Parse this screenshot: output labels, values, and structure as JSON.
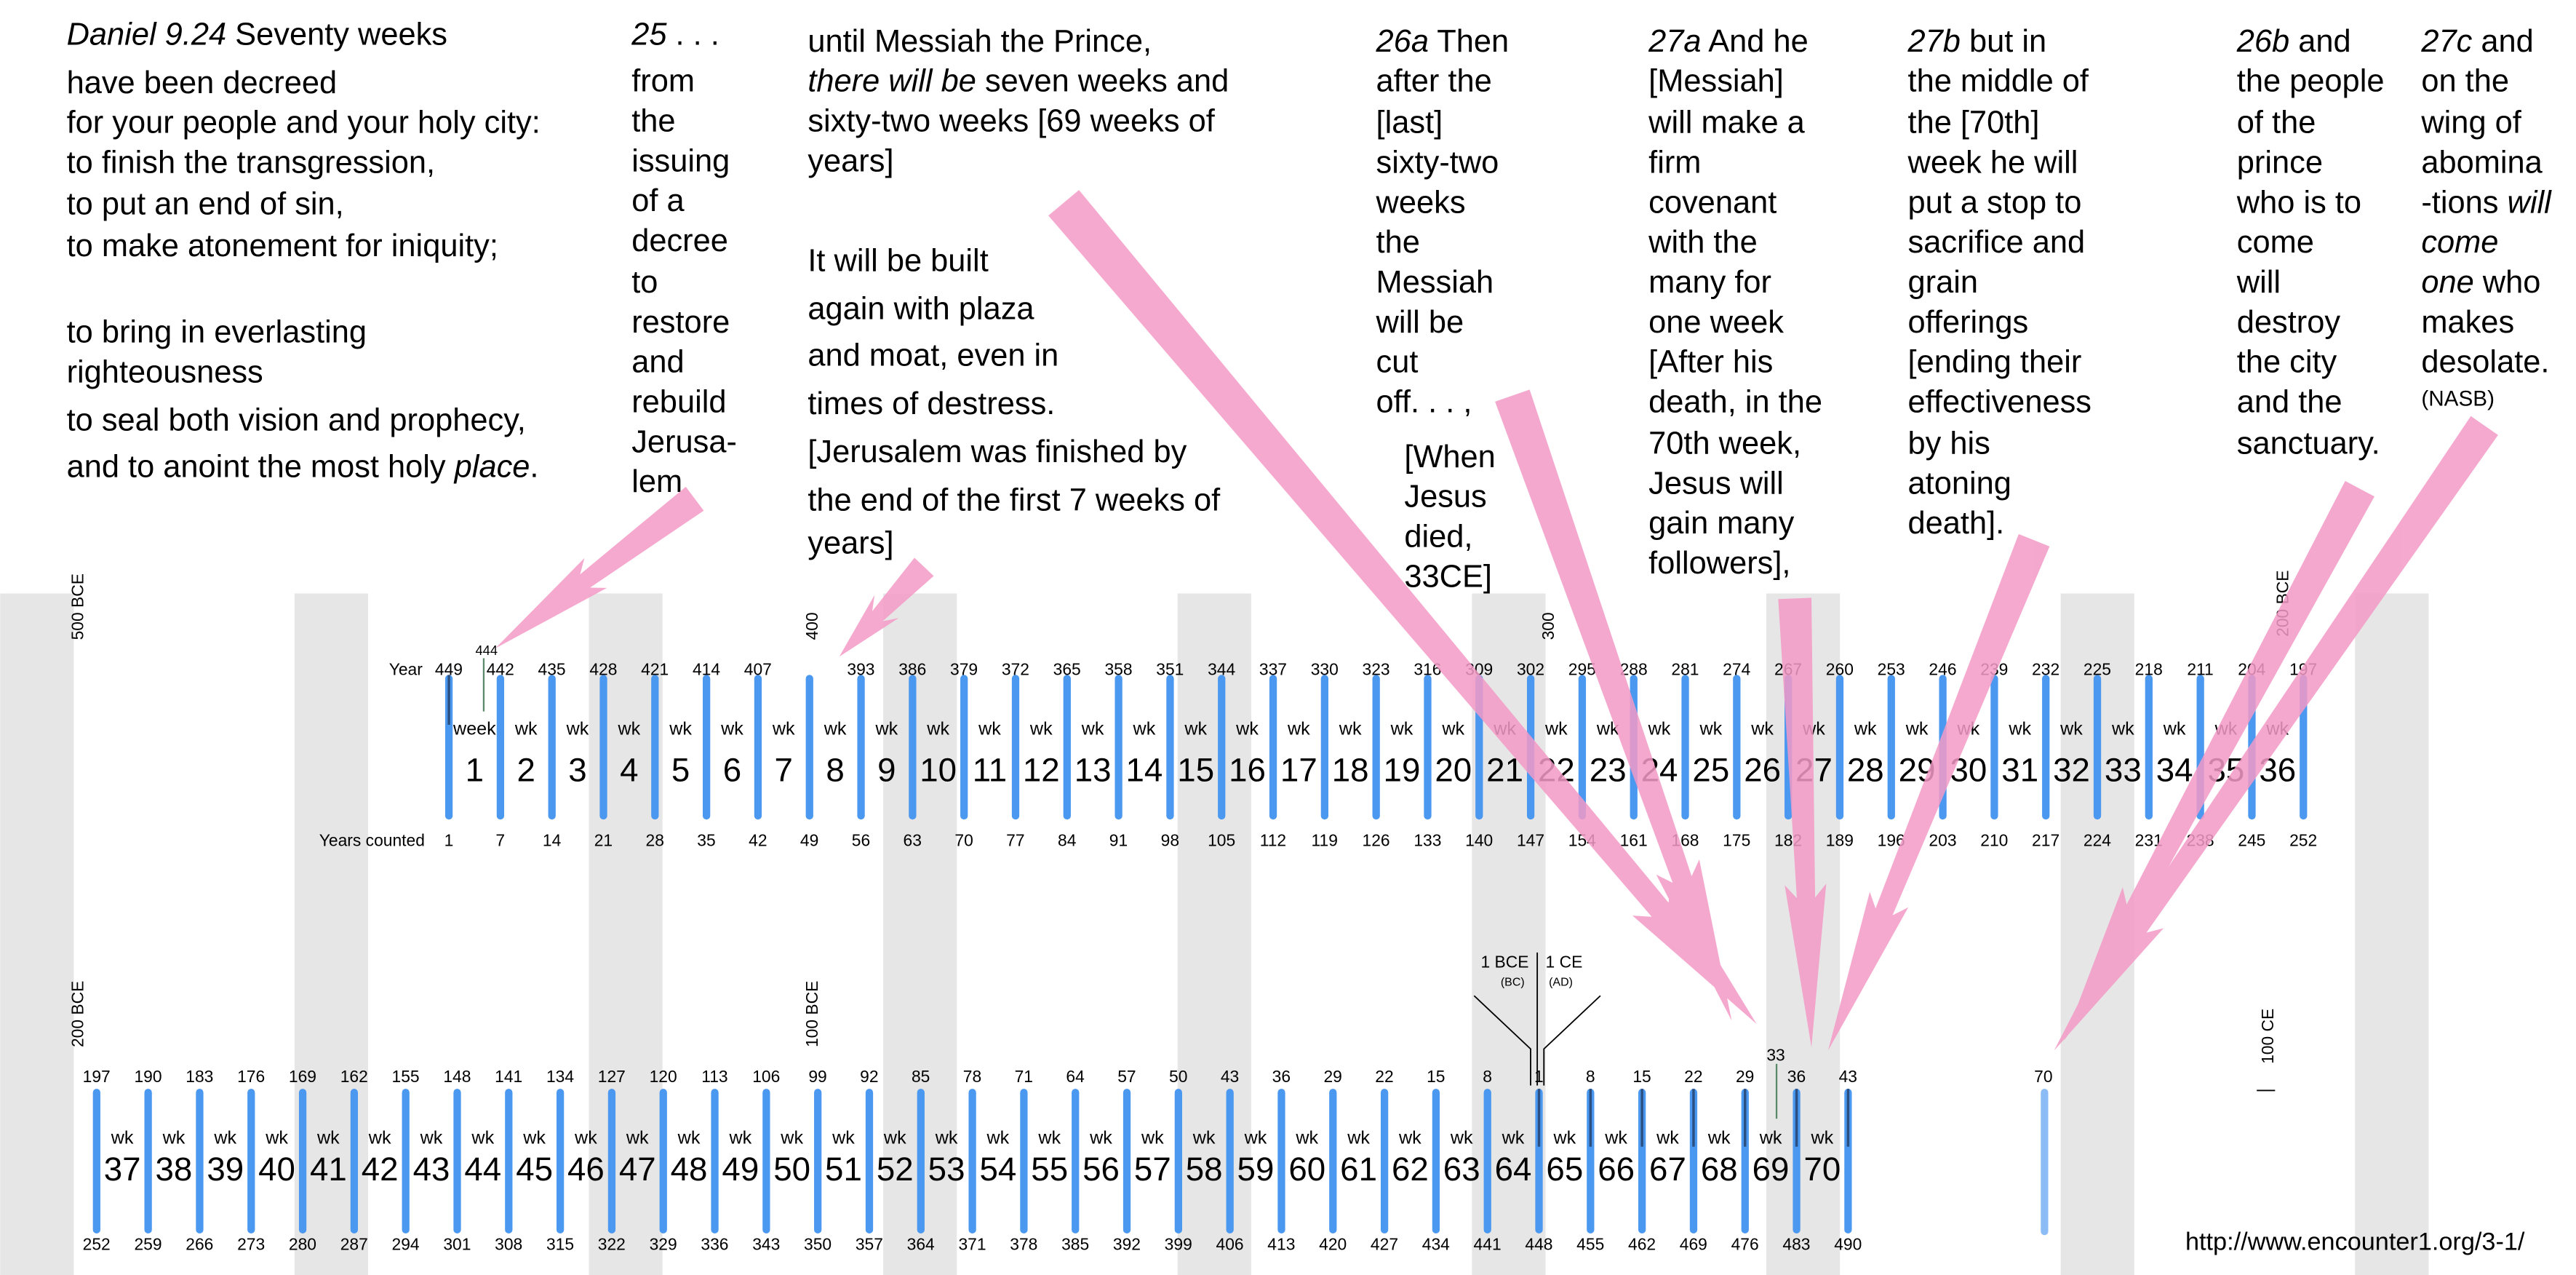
{
  "colors": {
    "stripe": "#e6e6e6",
    "bar": "#4a98f0",
    "bar_light": "#8cbcf5",
    "arrow": "#f49ac6",
    "marker": "#5a8a6a"
  },
  "verse_columns": [
    {
      "lines": [
        [
          {
            "t": "Daniel 9.24",
            "i": true
          },
          {
            "t": " Seventy weeks"
          }
        ],
        [
          {
            "t": "have been decreed"
          }
        ],
        [
          {
            "t": "for your people and your holy city:"
          }
        ],
        [
          {
            "t": "to finish the transgression,"
          }
        ],
        [
          {
            "t": "to put an end of sin,"
          }
        ],
        [
          {
            "t": "to make atonement for iniquity;"
          }
        ],
        [
          {
            "t": "to bring in everlasting"
          }
        ],
        [
          {
            "t": "righteousness"
          }
        ],
        [
          {
            "t": "to seal both vision and prophecy,"
          }
        ],
        [
          {
            "t": "and to anoint the most holy "
          },
          {
            "t": "place",
            "i": true
          },
          {
            "t": "."
          }
        ]
      ]
    },
    {
      "lines": [
        [
          {
            "t": "25",
            "i": true
          },
          {
            "t": " . . ."
          }
        ],
        [
          {
            "t": "from"
          }
        ],
        [
          {
            "t": "the"
          }
        ],
        [
          {
            "t": "issuing"
          }
        ],
        [
          {
            "t": "of a"
          }
        ],
        [
          {
            "t": "decree"
          }
        ],
        [
          {
            "t": "to"
          }
        ],
        [
          {
            "t": "restore"
          }
        ],
        [
          {
            "t": "and"
          }
        ],
        [
          {
            "t": "rebuild"
          }
        ],
        [
          {
            "t": "Jerusa-"
          }
        ],
        [
          {
            "t": "lem"
          }
        ]
      ]
    },
    {
      "lines": [
        [
          {
            "t": "until Messiah the Prince,"
          }
        ],
        [
          {
            "t": "there will be",
            "i": true
          },
          {
            "t": " seven weeks and"
          }
        ],
        [
          {
            "t": "sixty-two weeks [69 weeks of"
          }
        ],
        [
          {
            "t": "years]"
          }
        ],
        [
          {
            "t": "It will be built"
          }
        ],
        [
          {
            "t": "again with plaza"
          }
        ],
        [
          {
            "t": "and moat, even in"
          }
        ],
        [
          {
            "t": "times of destress."
          }
        ],
        [
          {
            "t": "[Jerusalem was finished by"
          }
        ],
        [
          {
            "t": "the end of the first 7 weeks of"
          }
        ],
        [
          {
            "t": "years]"
          }
        ]
      ]
    },
    {
      "lines": [
        [
          {
            "t": "26a",
            "i": true
          },
          {
            "t": " Then"
          }
        ],
        [
          {
            "t": "after the"
          }
        ],
        [
          {
            "t": "[last]"
          }
        ],
        [
          {
            "t": "sixty-two"
          }
        ],
        [
          {
            "t": "weeks"
          }
        ],
        [
          {
            "t": "the"
          }
        ],
        [
          {
            "t": "Messiah"
          }
        ],
        [
          {
            "t": "will be"
          }
        ],
        [
          {
            "t": "cut"
          }
        ],
        [
          {
            "t": "off. . . ,"
          }
        ],
        [
          {
            "t": "[When"
          }
        ],
        [
          {
            "t": "Jesus"
          }
        ],
        [
          {
            "t": "died,"
          }
        ],
        [
          {
            "t": "33CE]"
          }
        ]
      ]
    },
    {
      "lines": [
        [
          {
            "t": "27a",
            "i": true
          },
          {
            "t": " And he"
          }
        ],
        [
          {
            "t": "[Messiah]"
          }
        ],
        [
          {
            "t": "will make a"
          }
        ],
        [
          {
            "t": "firm"
          }
        ],
        [
          {
            "t": "covenant"
          }
        ],
        [
          {
            "t": "with the"
          }
        ],
        [
          {
            "t": "many for"
          }
        ],
        [
          {
            "t": "one week"
          }
        ],
        [
          {
            "t": "[After his"
          }
        ],
        [
          {
            "t": "death, in the"
          }
        ],
        [
          {
            "t": "70th week,"
          }
        ],
        [
          {
            "t": "Jesus will"
          }
        ],
        [
          {
            "t": "gain many"
          }
        ],
        [
          {
            "t": "followers],"
          }
        ]
      ]
    },
    {
      "lines": [
        [
          {
            "t": "27b",
            "i": true
          },
          {
            "t": " but in"
          }
        ],
        [
          {
            "t": "the middle of"
          }
        ],
        [
          {
            "t": "the [70th]"
          }
        ],
        [
          {
            "t": "week he will"
          }
        ],
        [
          {
            "t": "put a stop to"
          }
        ],
        [
          {
            "t": "sacrifice and"
          }
        ],
        [
          {
            "t": "grain"
          }
        ],
        [
          {
            "t": "offerings"
          }
        ],
        [
          {
            "t": "[ending their"
          }
        ],
        [
          {
            "t": "effectiveness"
          }
        ],
        [
          {
            "t": "by his"
          }
        ],
        [
          {
            "t": "atoning"
          }
        ],
        [
          {
            "t": "death]."
          }
        ]
      ]
    },
    {
      "lines": [
        [
          {
            "t": "26b",
            "i": true
          },
          {
            "t": " and"
          }
        ],
        [
          {
            "t": "the people"
          }
        ],
        [
          {
            "t": "of the"
          }
        ],
        [
          {
            "t": "prince"
          }
        ],
        [
          {
            "t": "who is to"
          }
        ],
        [
          {
            "t": "come"
          }
        ],
        [
          {
            "t": "will"
          }
        ],
        [
          {
            "t": "destroy"
          }
        ],
        [
          {
            "t": "the city"
          }
        ],
        [
          {
            "t": "and the"
          }
        ],
        [
          {
            "t": "sanctuary."
          }
        ]
      ]
    },
    {
      "lines": [
        [
          {
            "t": "27c",
            "i": true
          },
          {
            "t": " and"
          }
        ],
        [
          {
            "t": "on the"
          }
        ],
        [
          {
            "t": "wing of"
          }
        ],
        [
          {
            "t": "abomina"
          }
        ],
        [
          {
            "t": "-tions "
          },
          {
            "t": "will",
            "i": true
          }
        ],
        [
          {
            "t": "come",
            "i": true
          }
        ],
        [
          {
            "t": "one",
            "i": true
          },
          {
            "t": " who"
          }
        ],
        [
          {
            "t": "makes"
          }
        ],
        [
          {
            "t": "desolate."
          }
        ]
      ]
    }
  ],
  "nasb": "(NASB)",
  "row1": {
    "year_label": "Year",
    "counted_label": "Years counted",
    "years": [
      "449",
      "442",
      "435",
      "428",
      "421",
      "414",
      "407",
      "",
      "393",
      "386",
      "379",
      "372",
      "365",
      "358",
      "351",
      "344",
      "337",
      "330",
      "323",
      "316",
      "309",
      "302",
      "295",
      "288",
      "281",
      "274",
      "267",
      "260",
      "253",
      "246",
      "239",
      "232",
      "225",
      "218",
      "211",
      "204",
      "197"
    ],
    "counted": [
      "1",
      "7",
      "14",
      "21",
      "28",
      "35",
      "42",
      "49",
      "56",
      "63",
      "70",
      "77",
      "84",
      "91",
      "98",
      "105",
      "112",
      "119",
      "126",
      "133",
      "140",
      "147",
      "154",
      "161",
      "168",
      "175",
      "182",
      "189",
      "196",
      "203",
      "210",
      "217",
      "224",
      "231",
      "238",
      "245",
      "252"
    ],
    "week_labels": [
      "week",
      "wk",
      "wk",
      "wk",
      "wk",
      "wk",
      "wk",
      "wk",
      "wk",
      "wk",
      "wk",
      "wk",
      "wk",
      "wk",
      "wk",
      "wk",
      "wk",
      "wk",
      "wk",
      "wk",
      "wk",
      "wk",
      "wk",
      "wk",
      "wk",
      "wk",
      "wk",
      "wk",
      "wk",
      "wk",
      "wk",
      "wk",
      "wk",
      "wk",
      "wk",
      "wk"
    ],
    "weeks": [
      "1",
      "2",
      "3",
      "4",
      "5",
      "6",
      "7",
      "8",
      "9",
      "10",
      "11",
      "12",
      "13",
      "14",
      "15",
      "16",
      "17",
      "18",
      "19",
      "20",
      "21",
      "22",
      "23",
      "24",
      "25",
      "26",
      "27",
      "28",
      "29",
      "30",
      "31",
      "32",
      "33",
      "34",
      "35",
      "36"
    ],
    "decree_year": "444",
    "century_marks": [
      "500 BCE",
      "400",
      "300",
      "200 BCE"
    ]
  },
  "row2": {
    "years": [
      "197",
      "190",
      "183",
      "176",
      "169",
      "162",
      "155",
      "148",
      "141",
      "134",
      "127",
      "120",
      "113",
      "106",
      "99",
      "92",
      "85",
      "78",
      "71",
      "64",
      "57",
      "50",
      "43",
      "36",
      "29",
      "22",
      "15",
      "8",
      "1",
      "8",
      "15",
      "22",
      "29",
      "36",
      "43"
    ],
    "counted": [
      "252",
      "259",
      "266",
      "273",
      "280",
      "287",
      "294",
      "301",
      "308",
      "315",
      "322",
      "329",
      "336",
      "343",
      "350",
      "357",
      "364",
      "371",
      "378",
      "385",
      "392",
      "399",
      "406",
      "413",
      "420",
      "427",
      "434",
      "441",
      "448",
      "455",
      "462",
      "469",
      "476",
      "483",
      "490"
    ],
    "week_label": "wk",
    "weeks": [
      "37",
      "38",
      "39",
      "40",
      "41",
      "42",
      "43",
      "44",
      "45",
      "46",
      "47",
      "48",
      "49",
      "50",
      "51",
      "52",
      "53",
      "54",
      "55",
      "56",
      "57",
      "58",
      "59",
      "60",
      "61",
      "62",
      "63",
      "64",
      "65",
      "66",
      "67",
      "68",
      "69",
      "70"
    ],
    "death_year": "33",
    "destruction_year": "70",
    "century_marks": [
      "200 BCE",
      "100 BCE",
      "100 CE"
    ],
    "era_bce": "1 BCE",
    "era_bc": "(BC)",
    "era_ce": "1 CE",
    "era_ad": "(AD)"
  },
  "url": "http://www.encounter1.org/3-1/"
}
